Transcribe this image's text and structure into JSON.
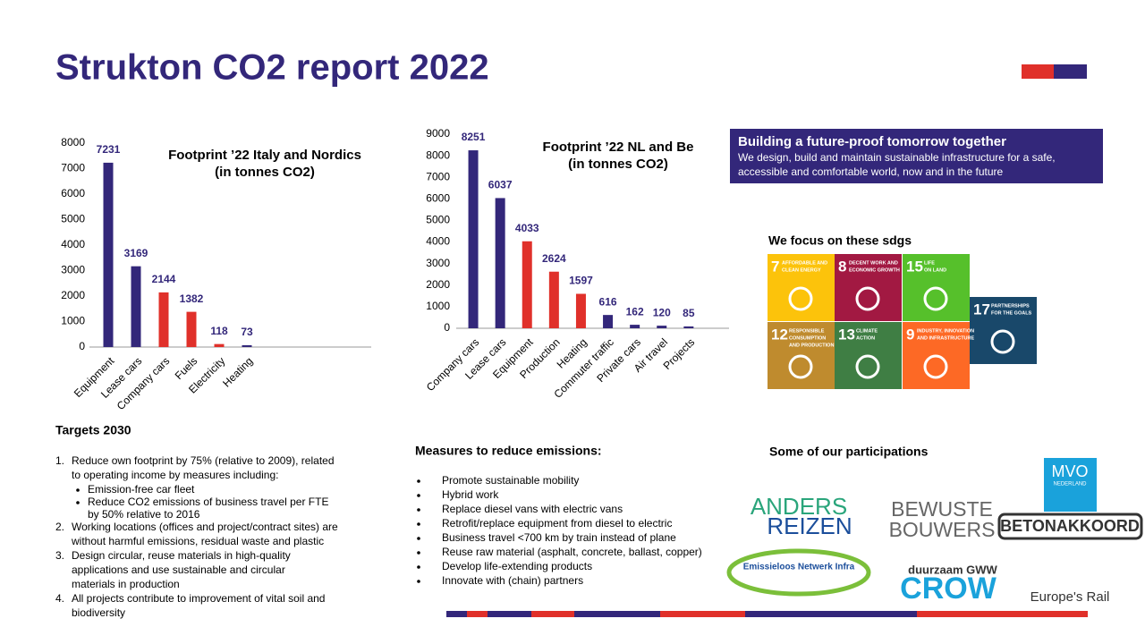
{
  "title": "Strukton CO2 report 2022",
  "chart_data": [
    {
      "type": "bar",
      "title": "Footprint ’22 Italy and Nordics",
      "subtitle": "(in tonnes CO2)",
      "categories": [
        "Equipment",
        "Lease cars",
        "Company cars",
        "Fuels",
        "Electricity",
        "Heating"
      ],
      "values": [
        7231,
        3169,
        2144,
        1382,
        118,
        73
      ],
      "colors": [
        "#33277a",
        "#33277a",
        "#e0302a",
        "#e0302a",
        "#e0302a",
        "#33277a"
      ],
      "ylim": [
        0,
        8000
      ],
      "yticks": [
        0,
        1000,
        2000,
        3000,
        4000,
        5000,
        6000,
        7000,
        8000
      ]
    },
    {
      "type": "bar",
      "title": "Footprint ’22 NL and Be",
      "subtitle": "(in tonnes CO2)",
      "categories": [
        "Company cars",
        "Lease cars",
        "Equipment",
        "Production",
        "Heating",
        "Commuter traffic",
        "Private cars",
        "Air travel",
        "Projects"
      ],
      "values": [
        8251,
        6037,
        4033,
        2624,
        1597,
        616,
        162,
        120,
        85
      ],
      "colors": [
        "#33277a",
        "#33277a",
        "#e0302a",
        "#e0302a",
        "#e0302a",
        "#33277a",
        "#33277a",
        "#33277a",
        "#33277a"
      ],
      "ylim": [
        0,
        9000
      ],
      "yticks": [
        0,
        1000,
        2000,
        3000,
        4000,
        5000,
        6000,
        7000,
        8000,
        9000
      ]
    }
  ],
  "box": {
    "heading": "Building a future-proof tomorrow together",
    "lines": [
      "We design, build and maintain sustainable infrastructure for a safe,",
      "accessible and comfortable world, now and in the future"
    ]
  },
  "sdgs": {
    "heading": "We focus on these sdgs",
    "tiles": [
      {
        "number": "7",
        "label": [
          "AFFORDABLE AND",
          "CLEAN ENERGY"
        ]
      },
      {
        "number": "8",
        "label": [
          "DECENT WORK AND",
          "ECONOMIC GROWTH"
        ]
      },
      {
        "number": "15",
        "label": [
          "LIFE",
          "ON LAND"
        ]
      },
      {
        "number": "17",
        "label": [
          "PARTNERSHIPS",
          "FOR THE GOALS"
        ]
      },
      {
        "number": "12",
        "label": [
          "RESPONSIBLE",
          "CONSUMPTION",
          "AND PRODUCTION"
        ]
      },
      {
        "number": "13",
        "label": [
          "CLIMATE",
          "ACTION"
        ]
      },
      {
        "number": "9",
        "label": [
          "INDUSTRY, INNOVATION",
          "AND INFRASTRUCTURE"
        ]
      }
    ]
  },
  "targets": {
    "heading": "Targets 2030",
    "items": [
      {
        "marker": "1.",
        "lines": [
          "Reduce own footprint by 75% (relative to 2009), related",
          "to operating income by measures including:"
        ],
        "sub": [
          [
            "Emission-free car fleet"
          ],
          [
            "Reduce CO2 emissions of business travel per FTE",
            "by 50% relative to 2016"
          ]
        ]
      },
      {
        "marker": "2.",
        "lines": [
          "Working locations (offices and project/contract sites) are",
          "without harmful emissions, residual waste and plastic"
        ]
      },
      {
        "marker": "3.",
        "lines": [
          "Design circular, reuse materials in high-quality",
          "applications and use sustainable and circular",
          "materials in production"
        ]
      },
      {
        "marker": "4.",
        "lines": [
          "All projects contribute to improvement of vital soil and",
          "biodiversity"
        ]
      }
    ]
  },
  "measures": {
    "heading": "Measures to reduce emissions:",
    "items": [
      "Promote sustainable mobility",
      "Hybrid work",
      "Replace diesel vans with electric vans",
      "Retrofit/replace equipment from diesel to electric",
      "Business travel <700 km by train instead of plane",
      "Reuse raw material (asphalt, concrete, ballast, copper)",
      "Develop life-extending products",
      "Innovate with (chain) partners"
    ]
  },
  "participations": {
    "heading": "Some of our participations",
    "logos": [
      "ANDERS",
      "REIZEN",
      "Emissieloos Netwerk Infra",
      "BEWUSTE",
      "BOUWERS",
      "duurzaam GWW",
      "CROW",
      "MVO",
      "NEDERLAND",
      "BETONAKKOORD",
      "Europe's Rail"
    ]
  }
}
